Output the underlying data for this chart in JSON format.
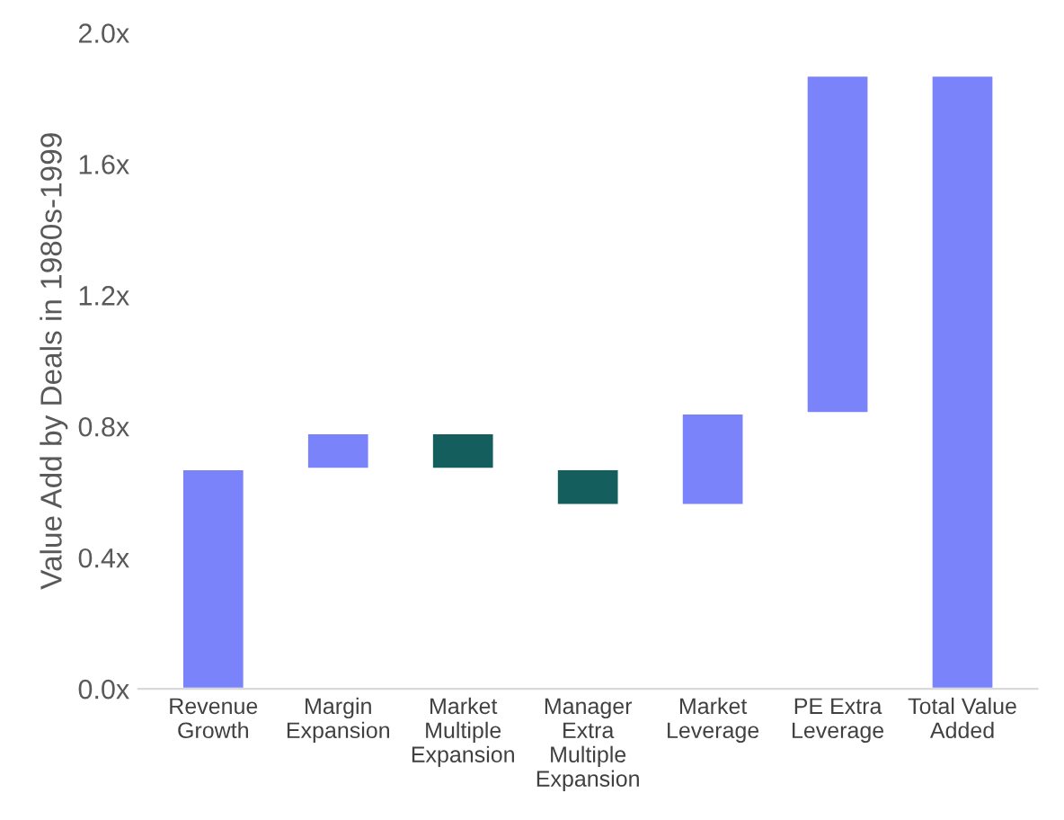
{
  "chart_data": {
    "type": "bar",
    "ylabel": "Value Add by Deals in 1980s-1999",
    "categories": [
      "Revenue\nGrowth",
      "Margin\nExpansion",
      "Market\nMultiple\nExpansion",
      "Manager\nExtra\nMultiple\nExpansion",
      "Market\nLeverage",
      "PE Extra\nLeverage",
      "Total Value\nAdded"
    ],
    "values": [
      0.67,
      0.11,
      -0.11,
      -0.11,
      0.28,
      1.03,
      1.87
    ],
    "base": [
      0,
      0.67,
      0.78,
      0.67,
      0.56,
      0.84,
      0
    ],
    "colors": [
      "#7b83fb",
      "#7b83fb",
      "#155e5e",
      "#155e5e",
      "#7b83fb",
      "#7b83fb",
      "#7b83fb"
    ],
    "ylim": [
      0,
      2.0
    ],
    "yticks": [
      {
        "value": 0,
        "label": "0.0x"
      },
      {
        "value": 0.4,
        "label": "0.4x"
      },
      {
        "value": 0.8,
        "label": "0.8x"
      },
      {
        "value": 1.2,
        "label": "1.2x"
      },
      {
        "value": 1.6,
        "label": "1.6x"
      },
      {
        "value": 2.0,
        "label": "2.0x"
      }
    ],
    "grid": false,
    "legend": false
  }
}
